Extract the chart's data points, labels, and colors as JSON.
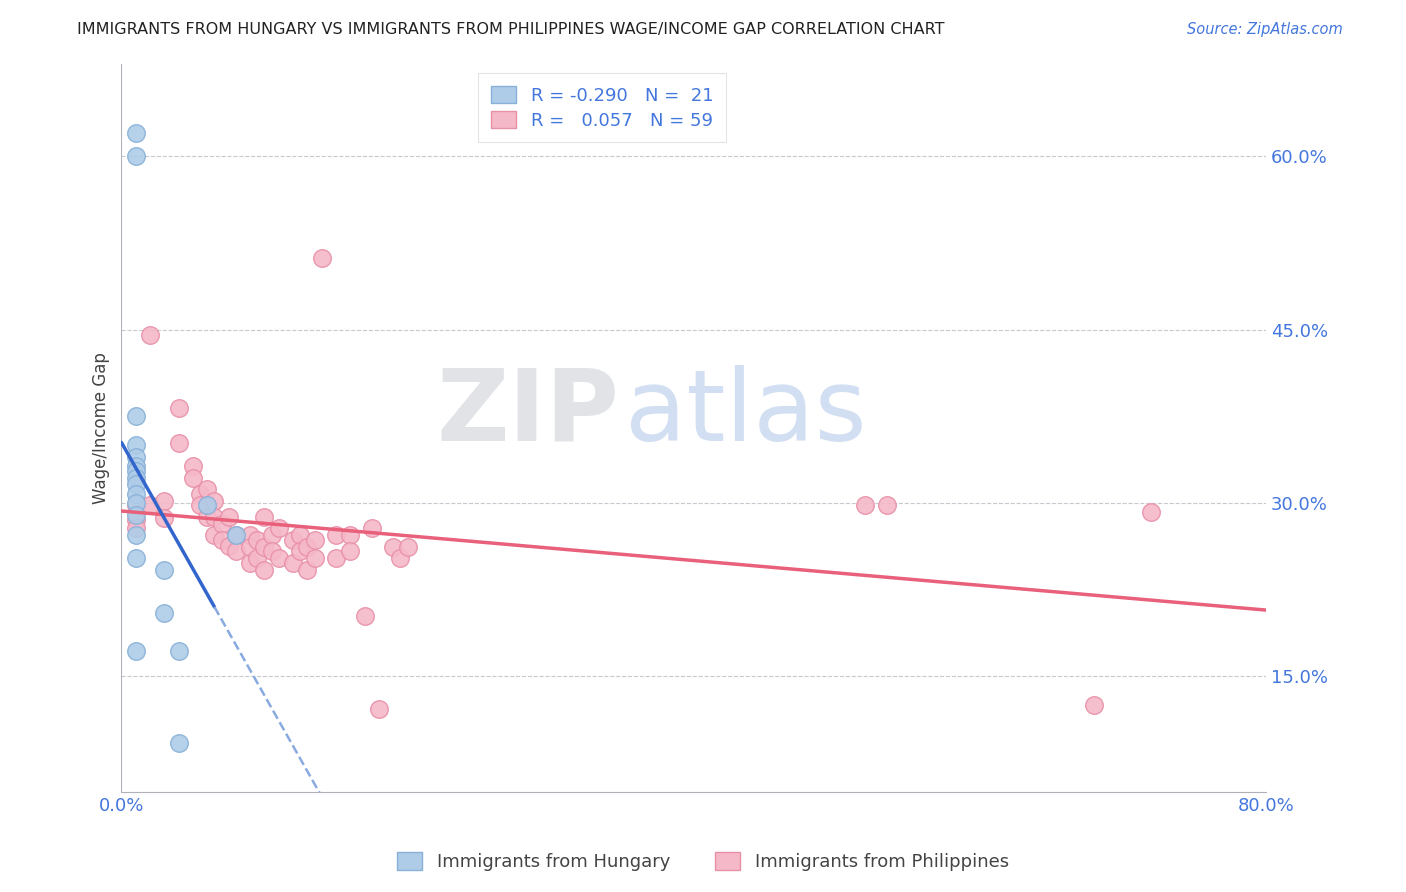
{
  "title": "IMMIGRANTS FROM HUNGARY VS IMMIGRANTS FROM PHILIPPINES WAGE/INCOME GAP CORRELATION CHART",
  "source": "Source: ZipAtlas.com",
  "ylabel": "Wage/Income Gap",
  "x_range": [
    0.0,
    0.8
  ],
  "y_range": [
    0.05,
    0.68
  ],
  "y_ticks": [
    0.15,
    0.3,
    0.45,
    0.6
  ],
  "y_tick_labels": [
    "15.0%",
    "30.0%",
    "45.0%",
    "60.0%"
  ],
  "hungary_color": "#aecce8",
  "philippines_color": "#f5b8c8",
  "hungary_edge": "#88b0d8",
  "philippines_edge": "#e890a8",
  "trendline_hungary_solid": "#3366cc",
  "trendline_hungary_dash": "#88aae0",
  "trendline_philippines": "#e8607a",
  "background_color": "#ffffff",
  "watermark_zip": "ZIP",
  "watermark_atlas": "atlas",
  "hungary_x": [
    0.01,
    0.01,
    0.01,
    0.01,
    0.01,
    0.01,
    0.01,
    0.01,
    0.01,
    0.01,
    0.01,
    0.01,
    0.01,
    0.01,
    0.01,
    0.03,
    0.03,
    0.04,
    0.04,
    0.06,
    0.08
  ],
  "hungary_y": [
    0.62,
    0.6,
    0.375,
    0.35,
    0.34,
    0.332,
    0.328,
    0.322,
    0.316,
    0.308,
    0.3,
    0.29,
    0.272,
    0.252,
    0.172,
    0.242,
    0.205,
    0.172,
    0.092,
    0.298,
    0.272
  ],
  "philippines_x": [
    0.01,
    0.01,
    0.01,
    0.02,
    0.02,
    0.03,
    0.03,
    0.04,
    0.04,
    0.05,
    0.05,
    0.055,
    0.055,
    0.06,
    0.06,
    0.065,
    0.065,
    0.065,
    0.07,
    0.07,
    0.075,
    0.075,
    0.08,
    0.08,
    0.09,
    0.09,
    0.09,
    0.095,
    0.095,
    0.1,
    0.1,
    0.1,
    0.105,
    0.105,
    0.11,
    0.11,
    0.12,
    0.12,
    0.125,
    0.125,
    0.13,
    0.13,
    0.135,
    0.135,
    0.14,
    0.15,
    0.15,
    0.16,
    0.16,
    0.17,
    0.175,
    0.18,
    0.19,
    0.195,
    0.2,
    0.52,
    0.535,
    0.68,
    0.72
  ],
  "philippines_y": [
    0.298,
    0.285,
    0.278,
    0.445,
    0.298,
    0.302,
    0.287,
    0.382,
    0.352,
    0.332,
    0.322,
    0.308,
    0.298,
    0.312,
    0.288,
    0.302,
    0.288,
    0.272,
    0.282,
    0.268,
    0.288,
    0.263,
    0.272,
    0.258,
    0.272,
    0.262,
    0.248,
    0.268,
    0.252,
    0.288,
    0.262,
    0.242,
    0.272,
    0.258,
    0.278,
    0.252,
    0.268,
    0.248,
    0.272,
    0.258,
    0.262,
    0.242,
    0.268,
    0.252,
    0.512,
    0.272,
    0.252,
    0.272,
    0.258,
    0.202,
    0.278,
    0.122,
    0.262,
    0.252,
    0.262,
    0.298,
    0.298,
    0.125,
    0.292
  ]
}
